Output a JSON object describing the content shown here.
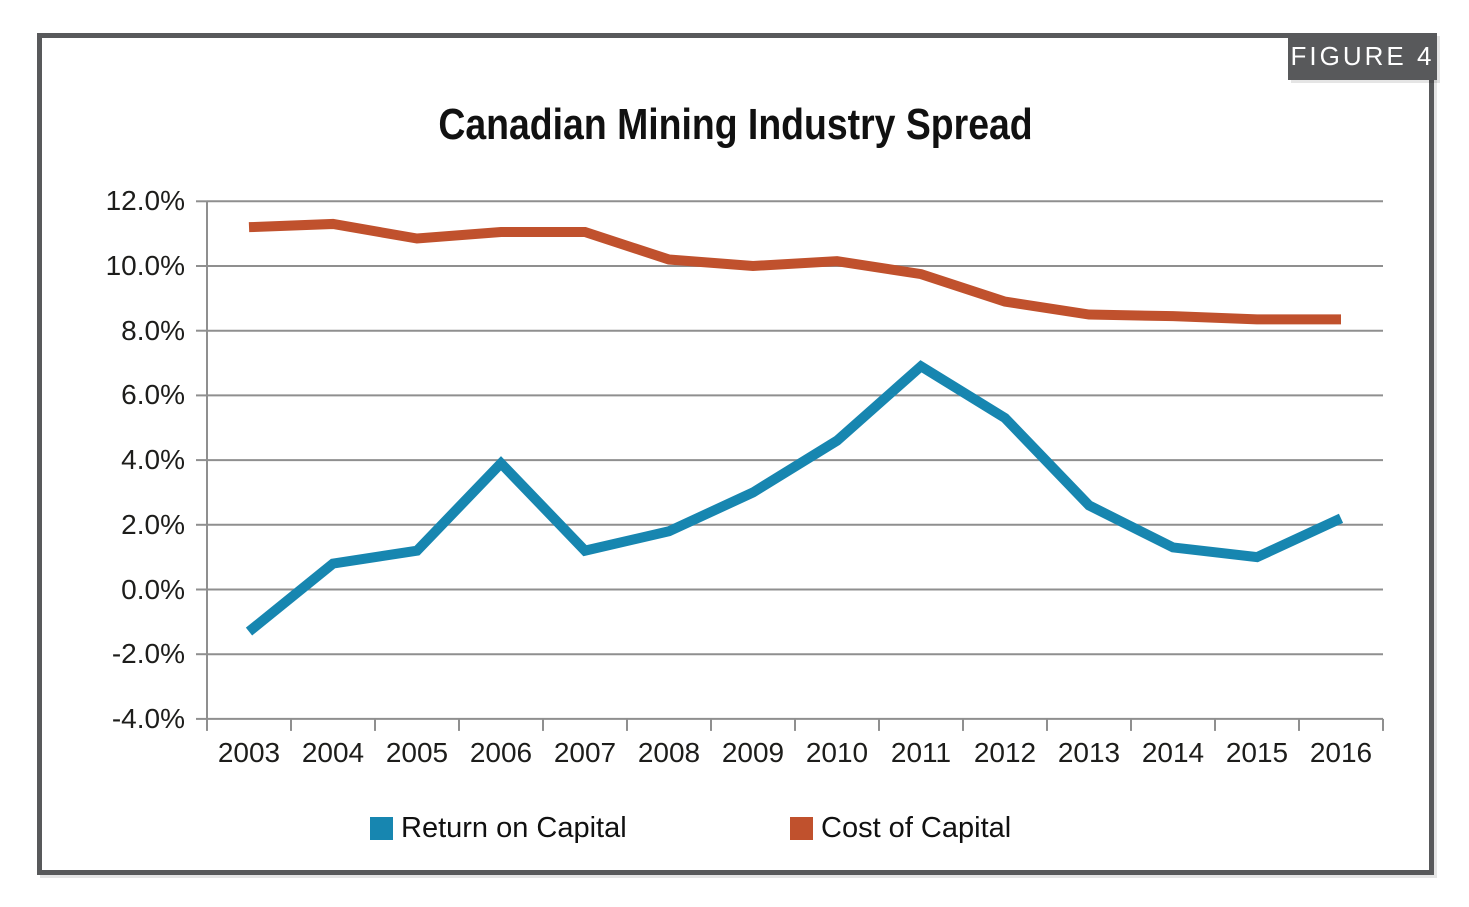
{
  "figure": {
    "label": "FIGURE 4"
  },
  "title": "Canadian Mining Industry Spread",
  "colors": {
    "frame": "#58595b",
    "tab_background": "#58595b",
    "tab_text": "#ffffff",
    "grid": "#8f8f8f",
    "axis": "#8f8f8f",
    "text": "#1d1d1b",
    "return_on_capital": "#1786b0",
    "cost_of_capital": "#c0512d"
  },
  "legend": {
    "items": [
      {
        "label": "Return on Capital",
        "color": "#1786b0"
      },
      {
        "label": "Cost of Capital",
        "color": "#c0512d"
      }
    ]
  },
  "chart_data": {
    "type": "line",
    "title": "Canadian Mining Industry Spread",
    "categories": [
      "2003",
      "2004",
      "2005",
      "2006",
      "2007",
      "2008",
      "2009",
      "2010",
      "2011",
      "2012",
      "2013",
      "2014",
      "2015",
      "2016"
    ],
    "series": [
      {
        "name": "Return on Capital",
        "color": "#1786b0",
        "values": [
          -1.3,
          0.8,
          1.2,
          3.9,
          1.2,
          1.8,
          3.0,
          4.6,
          6.9,
          5.3,
          2.6,
          1.3,
          1.0,
          2.2
        ]
      },
      {
        "name": "Cost of Capital",
        "color": "#c0512d",
        "values": [
          11.2,
          11.3,
          10.85,
          11.05,
          11.05,
          10.2,
          10.0,
          10.15,
          9.75,
          8.9,
          8.5,
          8.45,
          8.35,
          8.35
        ]
      }
    ],
    "ylim": [
      -4,
      12
    ],
    "ytick_step": 2,
    "ytick_labels": [
      "12.0%",
      "10.0%",
      "8.0%",
      "6.0%",
      "4.0%",
      "2.0%",
      "0.0%",
      "-2.0%",
      "-4.0%"
    ],
    "xlabel": "",
    "ylabel": "",
    "grid": true,
    "legend_position": "bottom"
  }
}
